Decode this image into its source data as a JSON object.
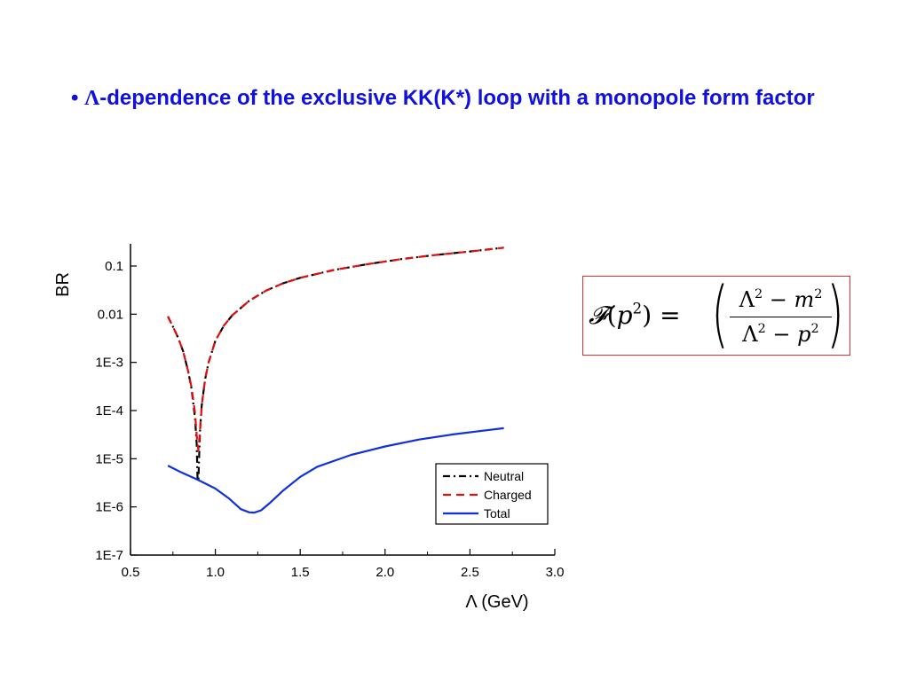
{
  "slide": {
    "bullet": "•",
    "lambda": "Λ",
    "heading_rest": "-dependence of the exclusive KK(K*) loop with a monopole form factor"
  },
  "formula": {
    "lhs_script": "𝓕",
    "lhs_var": "p",
    "lhs_exp": "2",
    "equals": "=",
    "lparen": "(",
    "rparen": ")",
    "num_a": "Λ",
    "num_a_exp": "2",
    "num_op": "−",
    "num_b": "m",
    "num_b_exp": "2",
    "den_a": "Λ",
    "den_a_exp": "2",
    "den_op": "−",
    "den_b": "p",
    "den_b_exp": "2"
  },
  "chart_data": {
    "type": "line",
    "xlabel": "Λ  (GeV)",
    "ylabel": "BR",
    "xlim": [
      0.5,
      3.0
    ],
    "ylim": [
      1e-07,
      0.3
    ],
    "y_scale": "log",
    "x_ticks": [
      "0.5",
      "1.0",
      "1.5",
      "2.0",
      "2.5",
      "3.0"
    ],
    "x_tick_values": [
      0.5,
      1.0,
      1.5,
      2.0,
      2.5,
      3.0
    ],
    "y_ticks": [
      "1E-7",
      "1E-6",
      "1E-5",
      "1E-4",
      "1E-3",
      "0.01",
      "0.1"
    ],
    "y_tick_values": [
      1e-07,
      1e-06,
      1e-05,
      0.0001,
      0.001,
      0.01,
      0.1
    ],
    "legend_position": "bottom-right",
    "grid": false,
    "series": [
      {
        "name": "Neutral",
        "color": "#000000",
        "style": "dashdot",
        "x": [
          0.72,
          0.75,
          0.78,
          0.81,
          0.84,
          0.86,
          0.88,
          0.89,
          0.895,
          0.9,
          0.905,
          0.91,
          0.92,
          0.94,
          0.96,
          1.0,
          1.05,
          1.1,
          1.2,
          1.3,
          1.4,
          1.5,
          1.7,
          1.9,
          2.1,
          2.3,
          2.5,
          2.7
        ],
        "y": [
          0.009,
          0.0055,
          0.0033,
          0.0017,
          0.00065,
          0.00028,
          7e-05,
          2e-05,
          4e-06,
          3.5e-06,
          1.2e-05,
          4e-05,
          0.00013,
          0.00045,
          0.001,
          0.0028,
          0.0058,
          0.0095,
          0.019,
          0.031,
          0.044,
          0.057,
          0.083,
          0.11,
          0.14,
          0.17,
          0.2,
          0.24
        ]
      },
      {
        "name": "Charged",
        "color": "#e01010",
        "style": "dashed",
        "x": [
          0.72,
          0.75,
          0.78,
          0.81,
          0.84,
          0.86,
          0.88,
          0.89,
          0.9,
          0.91,
          0.92,
          0.94,
          0.96,
          1.0,
          1.05,
          1.1,
          1.2,
          1.3,
          1.4,
          1.5,
          1.7,
          1.9,
          2.1,
          2.3,
          2.5,
          2.7
        ],
        "y": [
          0.009,
          0.0055,
          0.0033,
          0.0017,
          0.00065,
          0.0003,
          9e-05,
          3e-05,
          1.5e-05,
          4e-05,
          0.00013,
          0.00045,
          0.001,
          0.0028,
          0.0058,
          0.0095,
          0.019,
          0.031,
          0.044,
          0.057,
          0.083,
          0.11,
          0.14,
          0.17,
          0.2,
          0.24
        ]
      },
      {
        "name": "Total",
        "color": "#1030e0",
        "style": "solid",
        "x": [
          0.72,
          0.8,
          0.9,
          1.0,
          1.08,
          1.15,
          1.2,
          1.23,
          1.27,
          1.32,
          1.4,
          1.5,
          1.6,
          1.8,
          2.0,
          2.2,
          2.4,
          2.6,
          2.7
        ],
        "y": [
          7.2e-06,
          5.2e-06,
          3.6e-06,
          2.4e-06,
          1.5e-06,
          9e-07,
          7.7e-07,
          7.6e-07,
          8.5e-07,
          1.2e-06,
          2.2e-06,
          4.2e-06,
          6.8e-06,
          1.2e-05,
          1.8e-05,
          2.5e-05,
          3.2e-05,
          3.9e-05,
          4.3e-05
        ]
      }
    ]
  }
}
